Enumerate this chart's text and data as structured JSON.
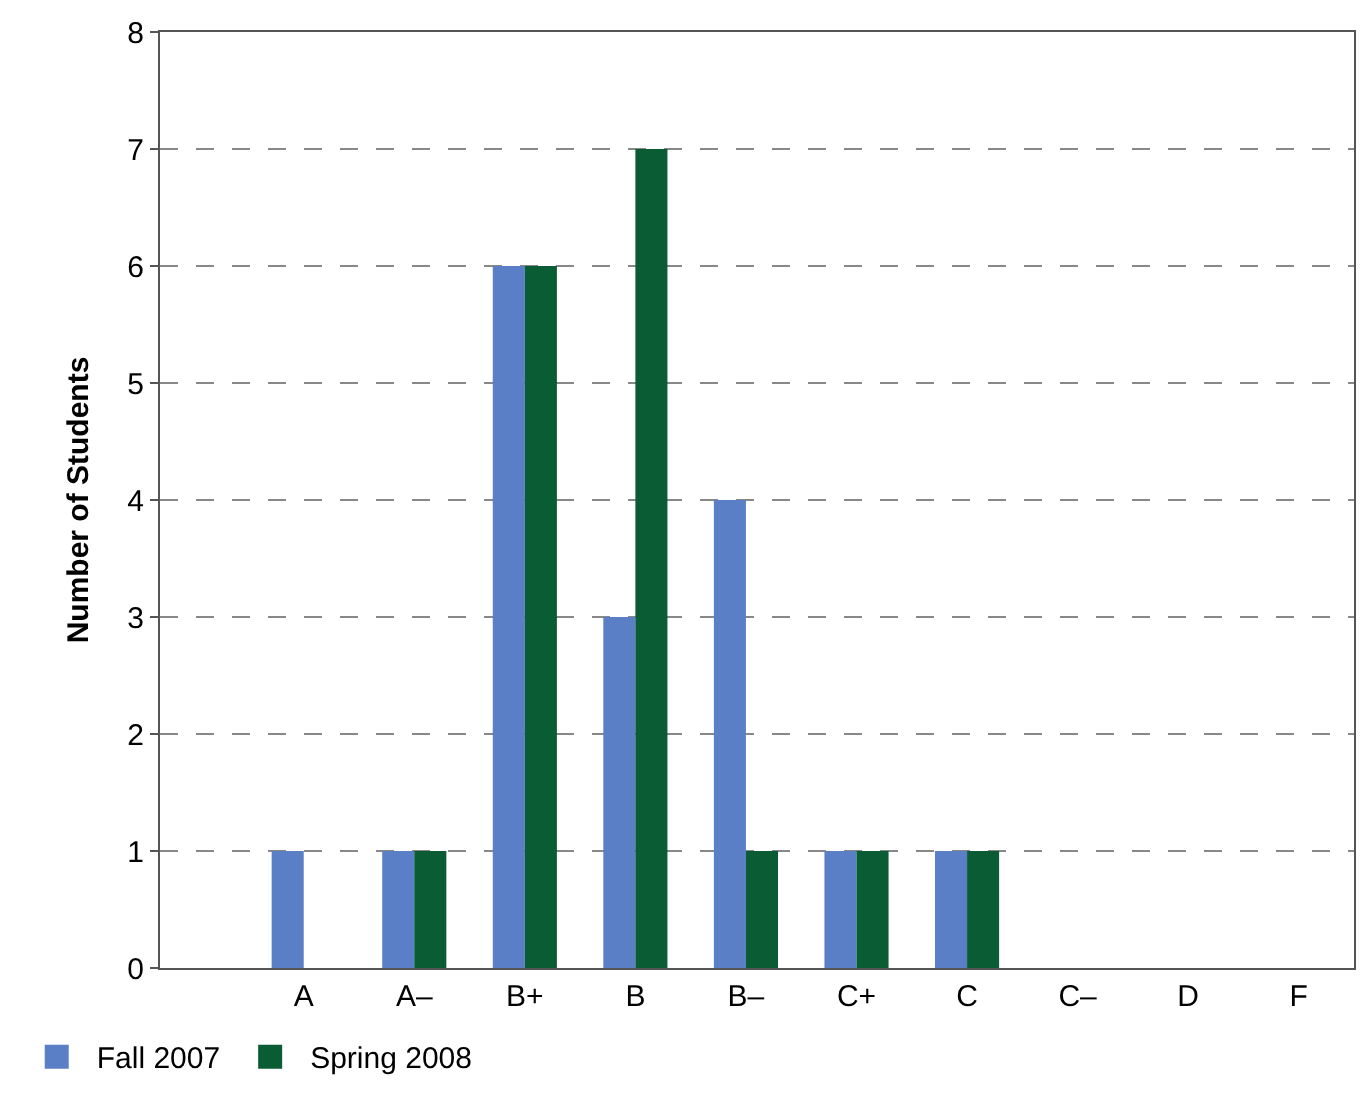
{
  "chart_data": {
    "type": "bar",
    "ylabel": "Number of Students",
    "categories": [
      "A",
      "A–",
      "B+",
      "B",
      "B–",
      "C+",
      "C",
      "C–",
      "D",
      "F"
    ],
    "series": [
      {
        "name": "Fall 2007",
        "color": "#5b7fc6",
        "values": [
          1,
          1,
          6,
          3,
          4,
          1,
          1,
          0,
          0,
          0
        ]
      },
      {
        "name": "Spring 2008",
        "color": "#0a5c34",
        "values": [
          0,
          1,
          6,
          7,
          1,
          1,
          1,
          0,
          0,
          0
        ]
      }
    ],
    "ylim": [
      0,
      8
    ],
    "yticks": [
      0,
      1,
      2,
      3,
      4,
      5,
      6,
      7,
      8
    ],
    "grid": "y",
    "legend": "bottom left"
  }
}
